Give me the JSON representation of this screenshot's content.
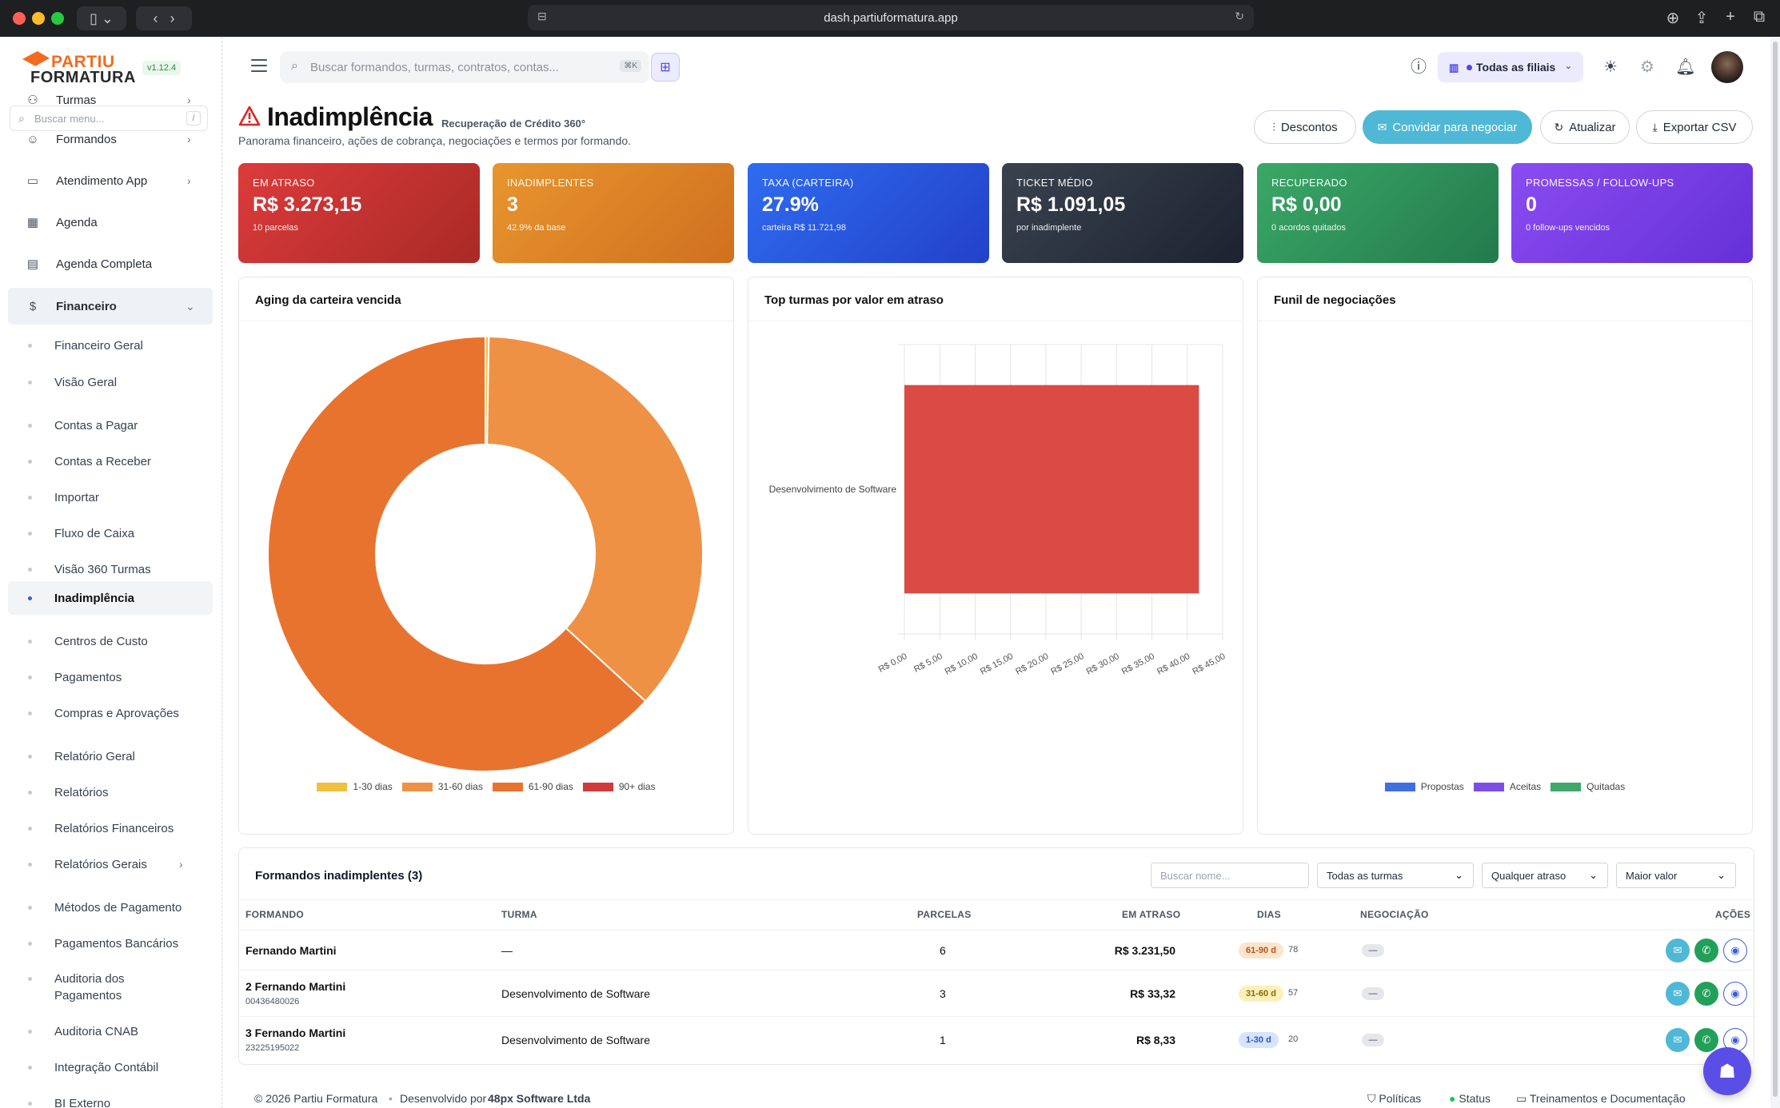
{
  "browser": {
    "url": "dash.partiuformatura.app"
  },
  "app": {
    "logo_line1": "PARTIU",
    "logo_line2": "FORMATURA",
    "version": "v1.12.4"
  },
  "sidebar": {
    "search_placeholder": "Buscar menu...",
    "search_shortcut": "/",
    "partial_top": "Turmas",
    "items": [
      {
        "label": "Formandos"
      },
      {
        "label": "Atendimento App"
      },
      {
        "label": "Agenda"
      },
      {
        "label": "Agenda Completa"
      },
      {
        "label": "Financeiro"
      }
    ],
    "submenu": [
      {
        "label": "Financeiro Geral"
      },
      {
        "label": "Visão Geral"
      },
      {
        "label": "Contas a Pagar"
      },
      {
        "label": "Contas a Receber"
      },
      {
        "label": "Importar"
      },
      {
        "label": "Fluxo de Caixa"
      },
      {
        "label": "Visão 360 Turmas"
      },
      {
        "label": "Inadimplência"
      },
      {
        "label": "Centros de Custo"
      },
      {
        "label": "Pagamentos"
      },
      {
        "label": "Compras e Aprovações"
      },
      {
        "label": "Relatório Geral"
      },
      {
        "label": "Relatórios"
      },
      {
        "label": "Relatórios Financeiros"
      },
      {
        "label": "Relatórios Gerais"
      },
      {
        "label": "Métodos de Pagamento"
      },
      {
        "label": "Pagamentos Bancários"
      },
      {
        "label": "Auditoria dos Pagamentos"
      },
      {
        "label": "Auditoria CNAB"
      },
      {
        "label": "Integração Contábil"
      },
      {
        "label": "BI Externo"
      }
    ]
  },
  "header": {
    "search_placeholder": "Buscar formandos, turmas, contratos, contas...",
    "search_shortcut": "⌘K",
    "branch_selector": "Todas as filiais"
  },
  "page": {
    "title": "Inadimplência",
    "subtitle": "Recuperação de Crédito 360°",
    "description": "Panorama financeiro, ações de cobrança, negociações e termos por formando.",
    "actions": {
      "discounts": "Descontos",
      "invite": "Convidar para negociar",
      "refresh": "Atualizar",
      "export": "Exportar CSV"
    }
  },
  "kpis": [
    {
      "label": "Em atraso",
      "value": "R$ 3.273,15",
      "sub": "10 parcelas",
      "color_from": "#dc3b3b",
      "color_to": "#a92a26"
    },
    {
      "label": "Inadimplentes",
      "value": "3",
      "sub": "42.9% da base",
      "color_from": "#e8952e",
      "color_to": "#d0701f"
    },
    {
      "label": "Taxa (carteira)",
      "value": "27.9%",
      "sub": "carteira R$ 11.721,98",
      "color_from": "#2f6cf0",
      "color_to": "#2241c9"
    },
    {
      "label": "Ticket médio",
      "value": "R$ 1.091,05",
      "sub": "por inadimplente",
      "color_from": "#3a4250",
      "color_to": "#1c2230"
    },
    {
      "label": "Recuperado",
      "value": "R$ 0,00",
      "sub": "0 acordos quitados",
      "color_from": "#3aa867",
      "color_to": "#237a4c"
    },
    {
      "label": "Promessas / Follow-ups",
      "value": "0",
      "sub": "0 follow-ups vencidos",
      "color_from": "#8a4cf0",
      "color_to": "#6530d8"
    }
  ],
  "charts": {
    "aging_title": "Aging da carteira vencida",
    "top_title": "Top turmas por valor em atraso",
    "funnel_title": "Funil de negociações"
  },
  "chart_data": [
    {
      "type": "pie",
      "donut": true,
      "labels": [
        "1-30 dias",
        "31-60 dias",
        "61-90 dias",
        "90+ dias"
      ],
      "values": [
        8.33,
        1197.4,
        2067.42,
        0
      ],
      "colors": [
        "#f0c040",
        "#ee9144",
        "#e8732f",
        "#d13a3a"
      ],
      "legend": "bottom"
    },
    {
      "type": "bar",
      "orientation": "horizontal",
      "categories": [
        "Desenvolvimento de Software"
      ],
      "values": [
        41.65
      ],
      "xlim": [
        0,
        45
      ],
      "xticks": [
        "R$ 0,00",
        "R$ 5,00",
        "R$ 10,00",
        "R$ 15,00",
        "R$ 20,00",
        "R$ 25,00",
        "R$ 30,00",
        "R$ 35,00",
        "R$ 40,00",
        "R$ 45,00"
      ],
      "color": "#d94b43",
      "grid": true
    },
    {
      "type": "bar",
      "series": [
        {
          "name": "Propostas",
          "values": [],
          "color": "#3f6fe0"
        },
        {
          "name": "Aceitas",
          "values": [],
          "color": "#7b4fe6"
        },
        {
          "name": "Quitadas",
          "values": [],
          "color": "#3fa86a"
        }
      ],
      "legend": "bottom"
    }
  ],
  "table": {
    "title": "Formandos inadimplentes (3)",
    "search_placeholder": "Buscar nome...",
    "filter_turma": "Todas as turmas",
    "filter_atraso": "Qualquer atraso",
    "sort": "Maior valor",
    "columns": {
      "formando": "FORMANDO",
      "turma": "TURMA",
      "parcelas": "PARCELAS",
      "em_atraso": "EM ATRASO",
      "dias": "DIAS",
      "negociacao": "NEGOCIAÇÃO",
      "acoes": "AÇÕES"
    },
    "rows": [
      {
        "name": "Fernando Martini",
        "doc": "",
        "turma": "—",
        "parcelas": "6",
        "em_atraso": "R$ 3.231,50",
        "faixa": "61-90 d",
        "dias": "78",
        "negociacao": "—",
        "pill_bg": "#fde4cc",
        "pill_fg": "#b4541a"
      },
      {
        "name": "2 Fernando Martini",
        "doc": "00436480026",
        "turma": "Desenvolvimento de Software",
        "parcelas": "3",
        "em_atraso": "R$ 33,32",
        "faixa": "31-60 d",
        "dias": "57",
        "negociacao": "—",
        "pill_bg": "#fdf0b8",
        "pill_fg": "#8a6a05"
      },
      {
        "name": "3 Fernando Martini",
        "doc": "23225195022",
        "turma": "Desenvolvimento de Software",
        "parcelas": "1",
        "em_atraso": "R$ 8,33",
        "faixa": "1-30 d",
        "dias": "20",
        "negociacao": "—",
        "pill_bg": "#d6e4fd",
        "pill_fg": "#2b56c5"
      }
    ]
  },
  "footer": {
    "copyright": "© 2026 Partiu Formatura",
    "dev_prefix": "Desenvolvido por",
    "dev_company": "48px Software Ltda",
    "policies": "Políticas",
    "status": "Status",
    "docs": "Treinamentos e Documentação"
  }
}
